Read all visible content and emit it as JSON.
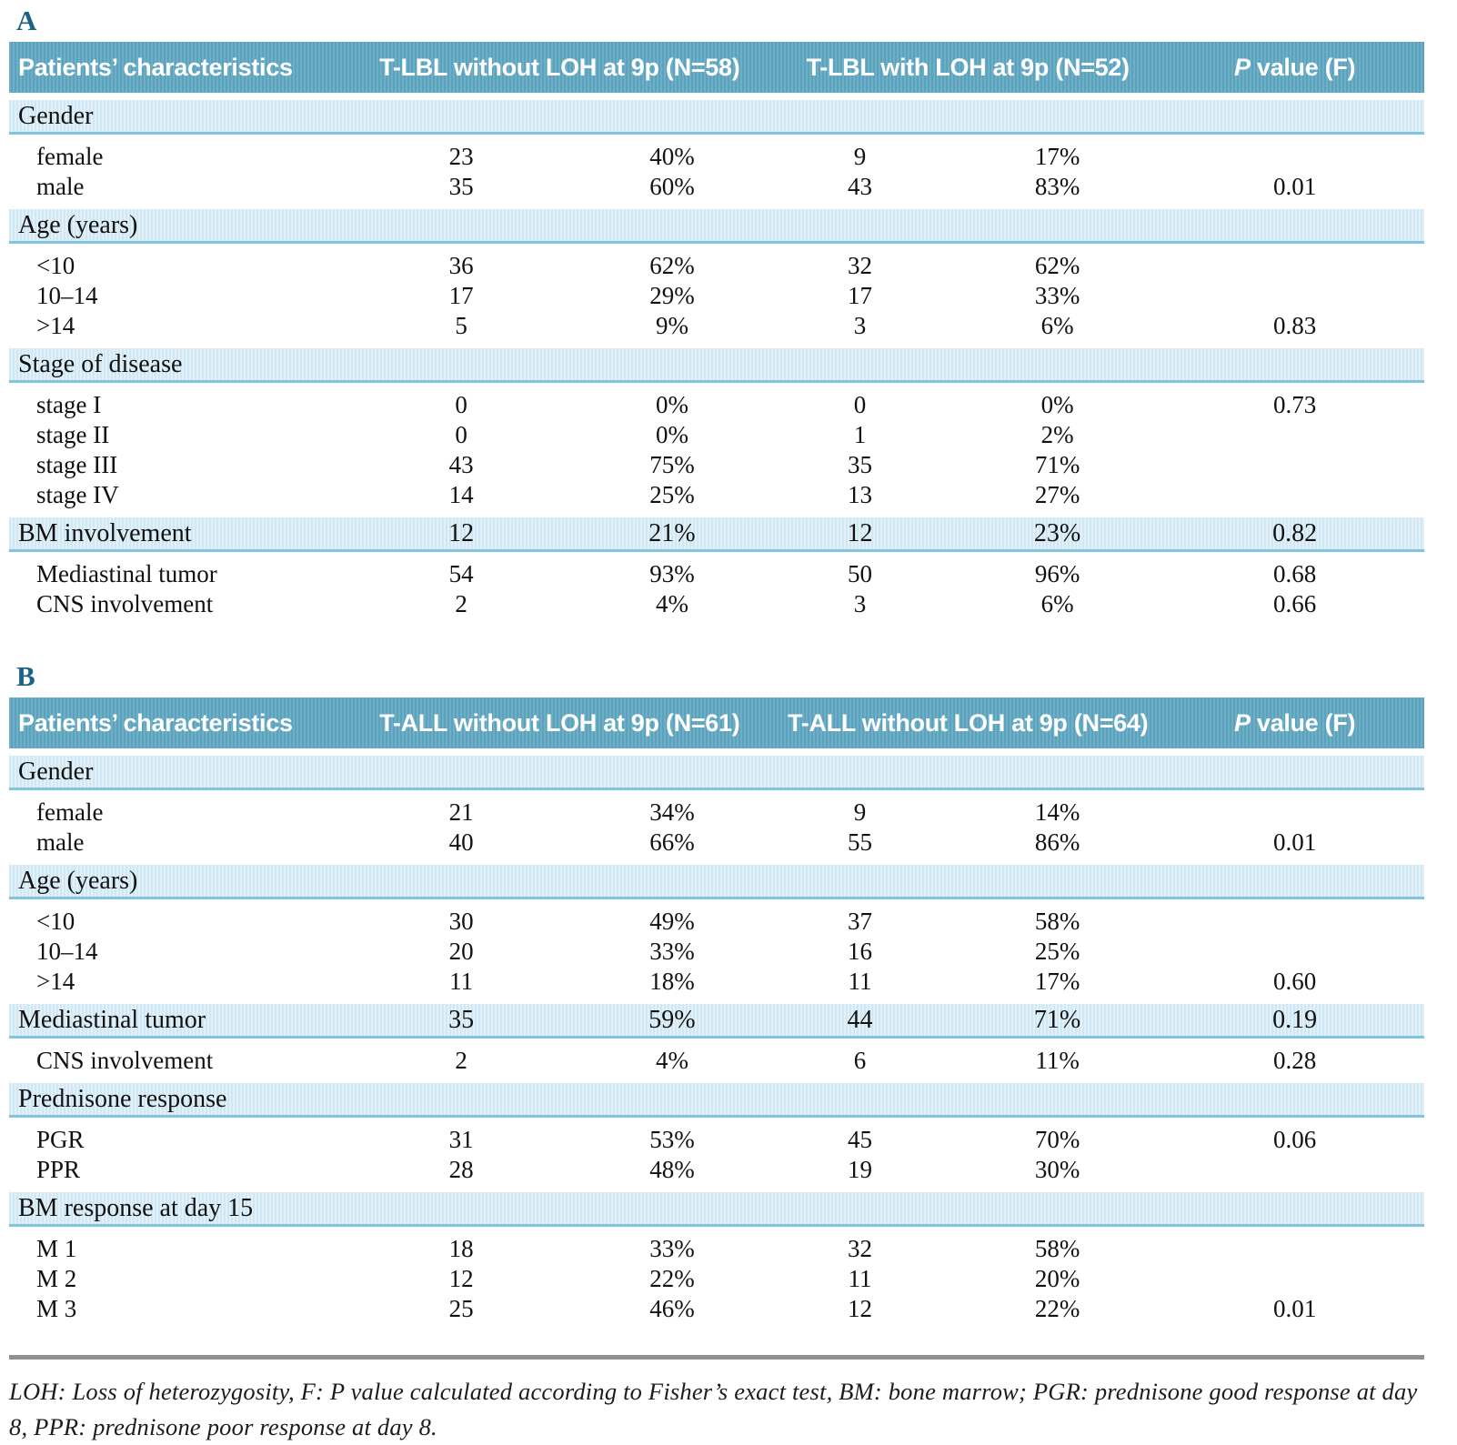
{
  "tables": [
    {
      "label": "A",
      "header": {
        "characteristics": "Patients’ characteristics",
        "group1": "T-LBL without LOH at 9p (N=58)",
        "group2": "T-LBL with LOH at 9p (N=52)",
        "pvalue": "P value (F)"
      },
      "rows": [
        {
          "kind": "band",
          "label": "Gender",
          "values": [
            "",
            "",
            "",
            "",
            ""
          ]
        },
        {
          "kind": "data",
          "label": "female",
          "values": [
            "23",
            "40%",
            "9",
            "17%",
            ""
          ]
        },
        {
          "kind": "data",
          "label": "male",
          "values": [
            "35",
            "60%",
            "43",
            "83%",
            "0.01"
          ]
        },
        {
          "kind": "band",
          "label": "Age (years)",
          "values": [
            "",
            "",
            "",
            "",
            ""
          ]
        },
        {
          "kind": "data",
          "label": "<10",
          "values": [
            "36",
            "62%",
            "32",
            "62%",
            ""
          ]
        },
        {
          "kind": "data",
          "label": "10–14",
          "values": [
            "17",
            "29%",
            "17",
            "33%",
            ""
          ]
        },
        {
          "kind": "data",
          "label": ">14",
          "values": [
            "5",
            "9%",
            "3",
            "6%",
            "0.83"
          ]
        },
        {
          "kind": "band",
          "label": "Stage of disease",
          "values": [
            "",
            "",
            "",
            "",
            ""
          ]
        },
        {
          "kind": "data",
          "label": "stage I",
          "values": [
            "0",
            "0%",
            "0",
            "0%",
            "0.73"
          ]
        },
        {
          "kind": "data",
          "label": "stage II",
          "values": [
            "0",
            "0%",
            "1",
            "2%",
            ""
          ]
        },
        {
          "kind": "data",
          "label": "stage III",
          "values": [
            "43",
            "75%",
            "35",
            "71%",
            ""
          ]
        },
        {
          "kind": "data",
          "label": "stage IV",
          "values": [
            "14",
            "25%",
            "13",
            "27%",
            ""
          ]
        },
        {
          "kind": "band",
          "label": "BM involvement",
          "values": [
            "12",
            "21%",
            "12",
            "23%",
            "0.82"
          ]
        },
        {
          "kind": "data",
          "label": "Mediastinal tumor",
          "values": [
            "54",
            "93%",
            "50",
            "96%",
            "0.68"
          ]
        },
        {
          "kind": "data",
          "label": "CNS involvement",
          "values": [
            "2",
            "4%",
            "3",
            "6%",
            "0.66"
          ]
        }
      ]
    },
    {
      "label": "B",
      "header": {
        "characteristics": "Patients’ characteristics",
        "group1": "T-ALL without LOH at 9p (N=61)",
        "group2": "T-ALL without LOH at 9p (N=64)",
        "pvalue": "P value (F)"
      },
      "rows": [
        {
          "kind": "band",
          "label": "Gender",
          "values": [
            "",
            "",
            "",
            "",
            ""
          ]
        },
        {
          "kind": "data",
          "label": "female",
          "values": [
            "21",
            "34%",
            "9",
            "14%",
            ""
          ]
        },
        {
          "kind": "data",
          "label": "male",
          "values": [
            "40",
            "66%",
            "55",
            "86%",
            "0.01"
          ]
        },
        {
          "kind": "band",
          "label": "Age (years)",
          "values": [
            "",
            "",
            "",
            "",
            ""
          ]
        },
        {
          "kind": "data",
          "label": "<10",
          "values": [
            "30",
            "49%",
            "37",
            "58%",
            ""
          ]
        },
        {
          "kind": "data",
          "label": "10–14",
          "values": [
            "20",
            "33%",
            "16",
            "25%",
            ""
          ]
        },
        {
          "kind": "data",
          "label": ">14",
          "values": [
            "11",
            "18%",
            "11",
            "17%",
            "0.60"
          ]
        },
        {
          "kind": "band",
          "label": "Mediastinal tumor",
          "values": [
            "35",
            "59%",
            "44",
            "71%",
            "0.19"
          ]
        },
        {
          "kind": "data",
          "label": "CNS involvement",
          "values": [
            "2",
            "4%",
            "6",
            "11%",
            "0.28"
          ]
        },
        {
          "kind": "band",
          "label": "Prednisone response",
          "values": [
            "",
            "",
            "",
            "",
            ""
          ]
        },
        {
          "kind": "data",
          "label": "PGR",
          "values": [
            "31",
            "53%",
            "45",
            "70%",
            "0.06"
          ]
        },
        {
          "kind": "data",
          "label": "PPR",
          "values": [
            "28",
            "48%",
            "19",
            "30%",
            ""
          ]
        },
        {
          "kind": "band",
          "label": "BM response at day 15",
          "values": [
            "",
            "",
            "",
            "",
            ""
          ]
        },
        {
          "kind": "data",
          "label": "M 1",
          "values": [
            "18",
            "33%",
            "32",
            "58%",
            ""
          ]
        },
        {
          "kind": "data",
          "label": "M 2",
          "values": [
            "12",
            "22%",
            "11",
            "20%",
            ""
          ]
        },
        {
          "kind": "data",
          "label": "M 3",
          "values": [
            "25",
            "46%",
            "12",
            "22%",
            "0.01"
          ]
        }
      ]
    }
  ],
  "footnote": "LOH: Loss of heterozygosity, F: P value calculated according to Fisher’s exact test, BM: bone marrow; PGR: prednisone good response at day 8, PPR: prednisone poor response at day 8."
}
